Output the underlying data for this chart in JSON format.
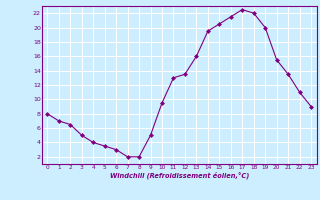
{
  "x": [
    0,
    1,
    2,
    3,
    4,
    5,
    6,
    7,
    8,
    9,
    10,
    11,
    12,
    13,
    14,
    15,
    16,
    17,
    18,
    19,
    20,
    21,
    22,
    23
  ],
  "y": [
    8,
    7,
    6.5,
    5,
    4,
    3.5,
    3,
    2,
    2,
    5,
    9.5,
    13,
    13.5,
    16,
    19.5,
    20.5,
    21.5,
    22.5,
    22,
    20,
    15.5,
    13.5,
    11,
    9
  ],
  "xlabel": "Windchill (Refroidissement éolien,°C)",
  "line_color": "#800080",
  "marker": "D",
  "marker_size": 2,
  "bg_color": "#cceeff",
  "grid_color": "#ffffff",
  "ylim": [
    1,
    23
  ],
  "xlim": [
    -0.5,
    23.5
  ],
  "yticks": [
    2,
    4,
    6,
    8,
    10,
    12,
    14,
    16,
    18,
    20,
    22
  ],
  "xticks": [
    0,
    1,
    2,
    3,
    4,
    5,
    6,
    7,
    8,
    9,
    10,
    11,
    12,
    13,
    14,
    15,
    16,
    17,
    18,
    19,
    20,
    21,
    22,
    23
  ]
}
